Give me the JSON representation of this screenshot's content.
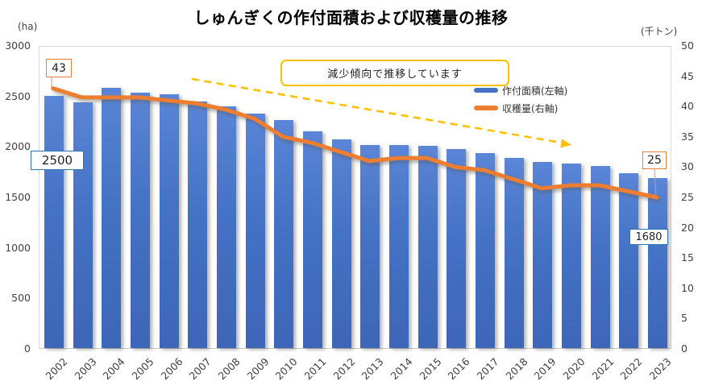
{
  "title": "しゅんぎくの作付面積および収穫量の推移",
  "axes": {
    "left_unit": "(ha)",
    "right_unit": "(千トン)",
    "left_ticks": [
      "3000",
      "2500",
      "2000",
      "1500",
      "1000",
      "500",
      "0"
    ],
    "right_ticks": [
      "50",
      "45",
      "40",
      "35",
      "30",
      "25",
      "20",
      "15",
      "10",
      "5",
      "0"
    ]
  },
  "legend": [
    {
      "label": "作付面積(左軸)",
      "color": "#4472C4"
    },
    {
      "label": "収穫量(右軸)",
      "color": "#ED7D31"
    }
  ],
  "annotation": "減少傾向で推移しています",
  "callouts": {
    "first_line_value": "43",
    "first_bar_value": "2500",
    "last_line_value": "25",
    "last_bar_value": "1680"
  },
  "colors": {
    "bar": "#4472C4",
    "line": "#ED7D31",
    "arrow": "#FFC000",
    "axis_text": "#404040",
    "callout_blue_border": "#2E75B6",
    "callout_orange_border": "#ED7D31"
  },
  "chart_data": {
    "type": "bar+line combo",
    "title": "しゅんぎくの作付面積および収穫量の推移",
    "categories": [
      "2002",
      "2003",
      "2004",
      "2005",
      "2006",
      "2007",
      "2008",
      "2009",
      "2010",
      "2011",
      "2012",
      "2013",
      "2014",
      "2015",
      "2016",
      "2017",
      "2018",
      "2019",
      "2020",
      "2021",
      "2022",
      "2023"
    ],
    "series": [
      {
        "name": "作付面積(左軸)",
        "type": "bar",
        "axis": "left",
        "unit": "ha",
        "color": "#4472C4",
        "values": [
          2500,
          2430,
          2580,
          2530,
          2510,
          2440,
          2390,
          2320,
          2260,
          2150,
          2070,
          2010,
          2010,
          2000,
          1970,
          1930,
          1880,
          1840,
          1830,
          1800,
          1730,
          1680
        ]
      },
      {
        "name": "収穫量(右軸)",
        "type": "line",
        "axis": "right",
        "unit": "千トン",
        "color": "#ED7D31",
        "values": [
          43,
          41.5,
          41.5,
          41.5,
          41,
          40.5,
          39.5,
          38,
          35,
          34,
          32.5,
          31,
          31.5,
          31.5,
          30,
          29.5,
          28,
          26.5,
          27,
          27,
          26,
          25
        ]
      }
    ],
    "left_axis": {
      "label": "(ha)",
      "range": [
        0,
        3000
      ],
      "tick_step": 500
    },
    "right_axis": {
      "label": "(千トン)",
      "range": [
        0,
        50
      ],
      "tick_step": 5
    },
    "grid": false,
    "legend_position": "top-right inside",
    "annotation": "減少傾向で推移しています",
    "data_labels": {
      "2002_bar": 2500,
      "2002_line": 43,
      "2023_bar": 1680,
      "2023_line": 25
    }
  }
}
